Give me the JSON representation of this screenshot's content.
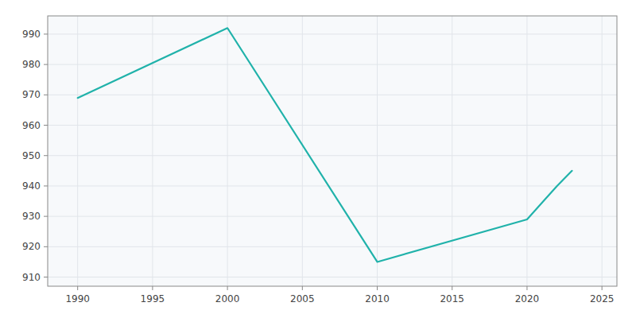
{
  "chart_data": {
    "type": "line",
    "x": [
      1990,
      2000,
      2010,
      2020,
      2022,
      2023
    ],
    "values": [
      969,
      992,
      915,
      929,
      940,
      945
    ],
    "color": "#20B2AA",
    "xlim": [
      1988,
      2026
    ],
    "ylim": [
      907,
      996
    ],
    "xticks": [
      1990,
      1995,
      2000,
      2005,
      2010,
      2015,
      2020,
      2025
    ],
    "yticks": [
      910,
      920,
      930,
      940,
      950,
      960,
      970,
      980,
      990
    ],
    "grid": true
  }
}
